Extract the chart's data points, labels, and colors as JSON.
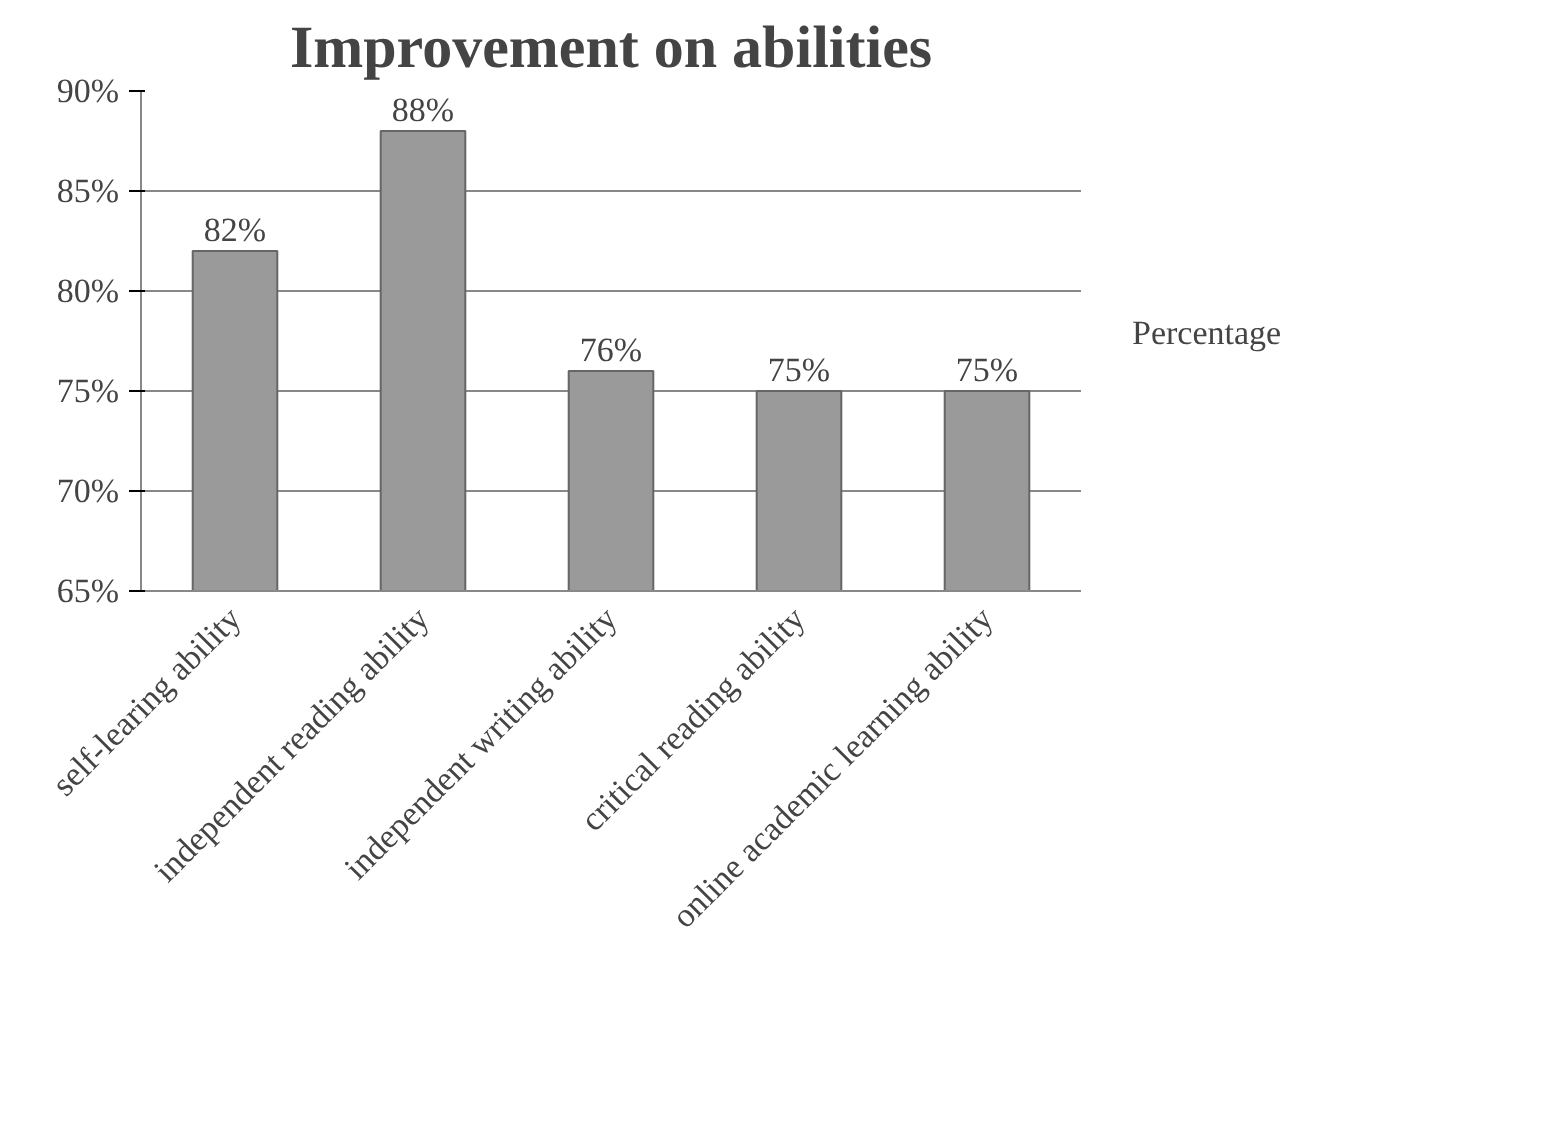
{
  "chart_data": {
    "type": "bar",
    "title": "Improvement on abilities",
    "categories": [
      "self-learing ability",
      "independent reading ability",
      "independent writing ability",
      "critical reading ability",
      "online academic learning ability"
    ],
    "series": [
      {
        "name": "Percentage",
        "color": "#9a9a9a",
        "values": [
          82,
          88,
          76,
          75,
          75
        ],
        "value_labels": [
          "82%",
          "88%",
          "76%",
          "75%",
          "75%"
        ]
      }
    ],
    "ylim": [
      65,
      90
    ],
    "yticks": [
      {
        "value": 65,
        "label": "65%"
      },
      {
        "value": 70,
        "label": "70%"
      },
      {
        "value": 75,
        "label": "75%"
      },
      {
        "value": 80,
        "label": "80%"
      },
      {
        "value": 85,
        "label": "85%"
      },
      {
        "value": 90,
        "label": "90%"
      }
    ],
    "grid": "y",
    "legend": "right"
  }
}
